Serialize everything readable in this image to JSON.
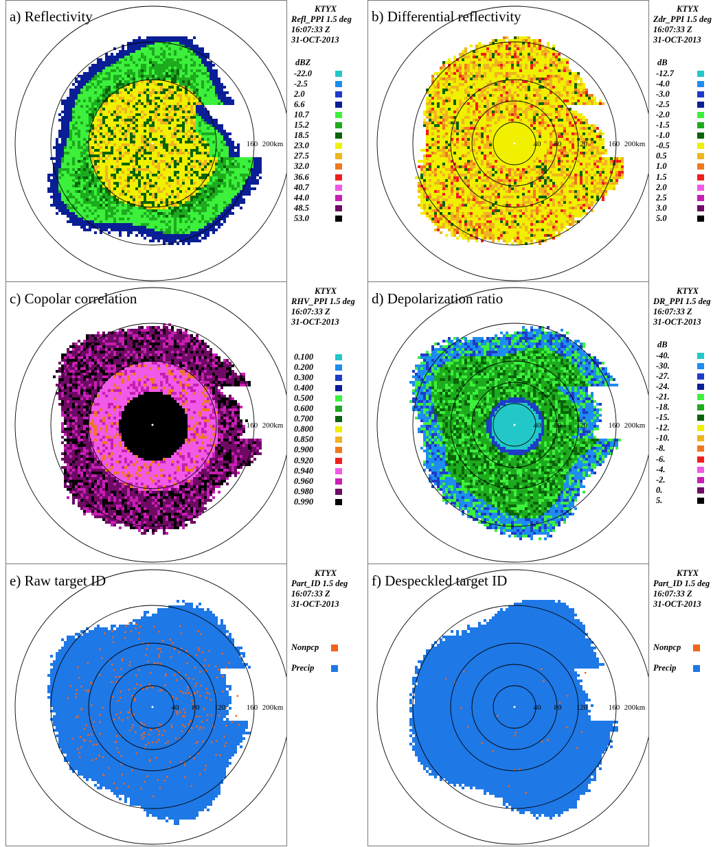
{
  "panels": [
    {
      "title": "a) Reflectivity",
      "station": "KTYX",
      "product": "Refl_PPI  1.5 deg",
      "time": "16:07:33 Z",
      "date": "31-OCT-2013",
      "unit": "dBZ",
      "legend": [
        {
          "label": "-22.0",
          "color": "#22c8c8"
        },
        {
          "label": "-2.5",
          "color": "#1e8cf0"
        },
        {
          "label": "2.0",
          "color": "#1e3cc8"
        },
        {
          "label": "6.6",
          "color": "#0a1e96"
        },
        {
          "label": "10.7",
          "color": "#3cf03c"
        },
        {
          "label": "15.2",
          "color": "#1eaa1e"
        },
        {
          "label": "18.5",
          "color": "#0a640a"
        },
        {
          "label": "23.0",
          "color": "#f0f000"
        },
        {
          "label": "27.5",
          "color": "#f0b41e"
        },
        {
          "label": "32.0",
          "color": "#f0781e"
        },
        {
          "label": "36.6",
          "color": "#f01e1e"
        },
        {
          "label": "40.7",
          "color": "#f05ae6"
        },
        {
          "label": "44.0",
          "color": "#c81eb4"
        },
        {
          "label": "48.5",
          "color": "#6e0a64"
        },
        {
          "label": "53.0",
          "color": "#000000"
        }
      ],
      "ring_labels": [
        "160",
        "200km"
      ],
      "field": [
        "#0a1e96",
        "#3cf03c",
        "#1eaa1e",
        "#f0f000",
        "#0a640a",
        "#f0b41e",
        "#f0781e"
      ]
    },
    {
      "title": "b) Differential reflectivity",
      "station": "KTYX",
      "product": "Zdr_PPI  1.5 deg",
      "time": "16:07:33 Z",
      "date": "31-OCT-2013",
      "unit": "dB",
      "legend": [
        {
          "label": "-12.7",
          "color": "#22c8c8"
        },
        {
          "label": "-4.0",
          "color": "#1e8cf0"
        },
        {
          "label": "-3.0",
          "color": "#1e3cc8"
        },
        {
          "label": "-2.5",
          "color": "#0a1e96"
        },
        {
          "label": "-2.0",
          "color": "#3cf03c"
        },
        {
          "label": "-1.5",
          "color": "#1eaa1e"
        },
        {
          "label": "-1.0",
          "color": "#0a640a"
        },
        {
          "label": "-0.5",
          "color": "#f0f000"
        },
        {
          "label": "0.5",
          "color": "#f0b41e"
        },
        {
          "label": "1.0",
          "color": "#f0781e"
        },
        {
          "label": "1.5",
          "color": "#f01e1e"
        },
        {
          "label": "2.0",
          "color": "#f05ae6"
        },
        {
          "label": "2.5",
          "color": "#c81eb4"
        },
        {
          "label": "3.0",
          "color": "#6e0a64"
        },
        {
          "label": "5.0",
          "color": "#000000"
        }
      ],
      "ring_labels": [
        "40",
        "80",
        "120",
        "160",
        "200km"
      ],
      "field": [
        "#f0f000",
        "#f0b41e",
        "#f0781e",
        "#f0f000",
        "#f01e1e",
        "#0a640a"
      ]
    },
    {
      "title": "c) Copolar correlation",
      "station": "KTYX",
      "product": "RHV_PPI  1.5 deg",
      "time": "16:07:33 Z",
      "date": "31-OCT-2013",
      "unit": "",
      "legend": [
        {
          "label": "0.100",
          "color": "#22c8c8"
        },
        {
          "label": "0.200",
          "color": "#1e8cf0"
        },
        {
          "label": "0.300",
          "color": "#1e3cc8"
        },
        {
          "label": "0.400",
          "color": "#0a1e96"
        },
        {
          "label": "0.500",
          "color": "#3cf03c"
        },
        {
          "label": "0.600",
          "color": "#1eaa1e"
        },
        {
          "label": "0.700",
          "color": "#0a640a"
        },
        {
          "label": "0.800",
          "color": "#f0f000"
        },
        {
          "label": "0.850",
          "color": "#f0b41e"
        },
        {
          "label": "0.900",
          "color": "#f0781e"
        },
        {
          "label": "0.920",
          "color": "#f01e1e"
        },
        {
          "label": "0.940",
          "color": "#f05ae6"
        },
        {
          "label": "0.960",
          "color": "#c81eb4"
        },
        {
          "label": "0.980",
          "color": "#6e0a64"
        },
        {
          "label": "0.990",
          "color": "#000000"
        }
      ],
      "ring_labels": [
        "160",
        "200km"
      ],
      "field": [
        "#000000",
        "#f05ae6",
        "#c81eb4",
        "#6e0a64",
        "#f0781e"
      ]
    },
    {
      "title": "d) Depolarization ratio",
      "station": "KTYX",
      "product": "DR_PPI  1.5 deg",
      "time": "16:07:33 Z",
      "date": "31-OCT-2013",
      "unit": "dB",
      "legend": [
        {
          "label": "-40.",
          "color": "#22c8c8"
        },
        {
          "label": "-30.",
          "color": "#1e8cf0"
        },
        {
          "label": "-27.",
          "color": "#1e3cc8"
        },
        {
          "label": "-24.",
          "color": "#0a1e96"
        },
        {
          "label": "-21.",
          "color": "#3cf03c"
        },
        {
          "label": "-18.",
          "color": "#1eaa1e"
        },
        {
          "label": "-15.",
          "color": "#0a640a"
        },
        {
          "label": "-12.",
          "color": "#f0f000"
        },
        {
          "label": "-10.",
          "color": "#f0b41e"
        },
        {
          "label": "-8.",
          "color": "#f0781e"
        },
        {
          "label": "-6.",
          "color": "#f01e1e"
        },
        {
          "label": "-4.",
          "color": "#f05ae6"
        },
        {
          "label": "-2.",
          "color": "#c81eb4"
        },
        {
          "label": "0.",
          "color": "#6e0a64"
        },
        {
          "label": "5.",
          "color": "#000000"
        }
      ],
      "ring_labels": [
        "40",
        "80",
        "120",
        "160",
        "200km"
      ],
      "field": [
        "#1eaa1e",
        "#1e8cf0",
        "#0a640a",
        "#3cf03c",
        "#1e3cc8",
        "#22c8c8"
      ]
    },
    {
      "title": "e) Raw target ID",
      "station": "KTYX",
      "product": "Part_ID  1.5 deg",
      "time": "16:07:33 Z",
      "date": "31-OCT-2013",
      "unit": "",
      "legend": [],
      "categories": [
        {
          "label": "Nonpcp",
          "color": "#f0641e"
        },
        {
          "label": "Precip",
          "color": "#1e78e6"
        }
      ],
      "ring_labels": [
        "40",
        "80",
        "120",
        "160",
        "200km"
      ],
      "field": [
        "#1e78e6"
      ]
    },
    {
      "title": "f) Despeckled target ID",
      "station": "KTYX",
      "product": "Part_ID  1.5 deg",
      "time": "16:07:33 Z",
      "date": "31-OCT-2013",
      "unit": "",
      "legend": [],
      "categories": [
        {
          "label": "Nonpcp",
          "color": "#f0641e"
        },
        {
          "label": "Precip",
          "color": "#1e78e6"
        }
      ],
      "ring_labels": [
        "40",
        "80",
        "120",
        "160",
        "200km"
      ],
      "field": [
        "#1e78e6"
      ]
    }
  ],
  "chart_data": [
    {
      "type": "heatmap",
      "title": "a) Reflectivity",
      "product": "Refl_PPI",
      "elevation_deg": 1.5,
      "station": "KTYX",
      "time": "16:07:33 Z",
      "date": "31-OCT-2013",
      "unit": "dBZ",
      "colorbar_levels": [
        -22.0,
        -2.5,
        2.0,
        6.6,
        10.7,
        15.2,
        18.5,
        23.0,
        27.5,
        32.0,
        36.6,
        40.7,
        44.0,
        48.5,
        53.0
      ],
      "range_rings_km": [
        40,
        80,
        120,
        160,
        200
      ]
    },
    {
      "type": "heatmap",
      "title": "b) Differential reflectivity",
      "product": "Zdr_PPI",
      "elevation_deg": 1.5,
      "station": "KTYX",
      "time": "16:07:33 Z",
      "date": "31-OCT-2013",
      "unit": "dB",
      "colorbar_levels": [
        -12.7,
        -4.0,
        -3.0,
        -2.5,
        -2.0,
        -1.5,
        -1.0,
        -0.5,
        0.5,
        1.0,
        1.5,
        2.0,
        2.5,
        3.0,
        5.0
      ],
      "range_rings_km": [
        40,
        80,
        120,
        160,
        200
      ]
    },
    {
      "type": "heatmap",
      "title": "c) Copolar correlation",
      "product": "RHV_PPI",
      "elevation_deg": 1.5,
      "station": "KTYX",
      "time": "16:07:33 Z",
      "date": "31-OCT-2013",
      "colorbar_levels": [
        0.1,
        0.2,
        0.3,
        0.4,
        0.5,
        0.6,
        0.7,
        0.8,
        0.85,
        0.9,
        0.92,
        0.94,
        0.96,
        0.98,
        0.99
      ],
      "range_rings_km": [
        40,
        80,
        120,
        160,
        200
      ]
    },
    {
      "type": "heatmap",
      "title": "d) Depolarization ratio",
      "product": "DR_PPI",
      "elevation_deg": 1.5,
      "station": "KTYX",
      "time": "16:07:33 Z",
      "date": "31-OCT-2013",
      "unit": "dB",
      "colorbar_levels": [
        -40,
        -30,
        -27,
        -24,
        -21,
        -18,
        -15,
        -12,
        -10,
        -8,
        -6,
        -4,
        -2,
        0,
        5
      ],
      "range_rings_km": [
        40,
        80,
        120,
        160,
        200
      ]
    },
    {
      "type": "heatmap",
      "title": "e) Raw target ID",
      "product": "Part_ID",
      "elevation_deg": 1.5,
      "station": "KTYX",
      "time": "16:07:33 Z",
      "date": "31-OCT-2013",
      "categories": [
        "Nonpcp",
        "Precip"
      ],
      "range_rings_km": [
        40,
        80,
        120,
        160,
        200
      ]
    },
    {
      "type": "heatmap",
      "title": "f) Despeckled target ID",
      "product": "Part_ID",
      "elevation_deg": 1.5,
      "station": "KTYX",
      "time": "16:07:33 Z",
      "date": "31-OCT-2013",
      "categories": [
        "Nonpcp",
        "Precip"
      ],
      "range_rings_km": [
        40,
        80,
        120,
        160,
        200
      ]
    }
  ]
}
